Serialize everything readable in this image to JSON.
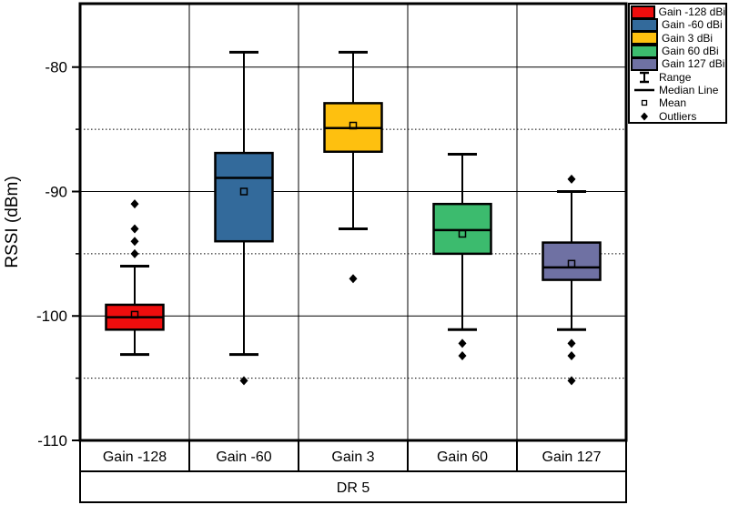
{
  "figure": {
    "y_axis_label": "RSSI (dBm)",
    "x_group_label": "DR 5"
  },
  "legend": {
    "symbol_items": [
      {
        "type": "range",
        "label": "Range"
      },
      {
        "type": "median",
        "label": "Median Line"
      },
      {
        "type": "mean",
        "label": "Mean"
      },
      {
        "type": "outliers",
        "label": "Outliers"
      }
    ]
  },
  "chart_data": {
    "type": "boxplot",
    "title": "",
    "xlabel": "DR 5",
    "ylabel": "RSSI (dBm)",
    "ylim": [
      -110,
      -74.9
    ],
    "yticks_major": [
      -80,
      -90,
      -100,
      -110
    ],
    "yticks_minor": [
      -85,
      -95,
      -105
    ],
    "grid": {
      "major": "solid",
      "minor": "dotted",
      "vertical_separators": true,
      "legend_position": "top-right"
    },
    "categories": [
      "Gain -128",
      "Gain -60",
      "Gain 3",
      "Gain 60",
      "Gain 127"
    ],
    "series": [
      {
        "name": "Gain -128 dBi",
        "color": "#ee0d0d",
        "whisker_low": -103.1,
        "q1": -101.1,
        "median": -100.1,
        "q3": -99.1,
        "whisker_high": -96.0,
        "mean": -99.9,
        "outliers": [
          -91.0,
          -93.0,
          -94.0,
          -95.0
        ]
      },
      {
        "name": "Gain -60 dBi",
        "color": "#336a9b",
        "whisker_low": -103.1,
        "q1": -94.0,
        "median": -88.9,
        "q3": -86.9,
        "whisker_high": -78.8,
        "mean": -90.0,
        "outliers": [
          -105.2
        ]
      },
      {
        "name": "Gain 3 dBi",
        "color": "#fec00f",
        "whisker_low": -93.0,
        "q1": -86.8,
        "median": -84.9,
        "q3": -82.9,
        "whisker_high": -78.8,
        "mean": -84.7,
        "outliers": [
          -97.0
        ]
      },
      {
        "name": "Gain 60 dBi",
        "color": "#3cbb6e",
        "whisker_low": -101.1,
        "q1": -95.0,
        "median": -93.1,
        "q3": -91.0,
        "whisker_high": -87.0,
        "mean": -93.4,
        "outliers": [
          -102.2,
          -103.2
        ]
      },
      {
        "name": "Gain 127 dBi",
        "color": "#6f71a3",
        "whisker_low": -101.1,
        "q1": -97.1,
        "median": -96.1,
        "q3": -94.1,
        "whisker_high": -90.0,
        "mean": -95.8,
        "outliers": [
          -89.0,
          -102.2,
          -103.2,
          -105.2
        ]
      }
    ]
  }
}
